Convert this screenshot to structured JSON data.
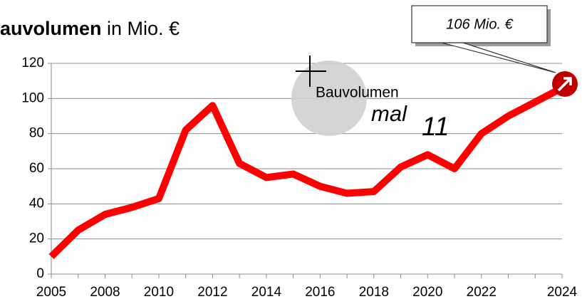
{
  "chart_data": {
    "type": "line",
    "title_bold": "auvolumen",
    "title_rest": " in Mio. €",
    "categories": [
      "2005",
      null,
      "2008",
      null,
      "2010",
      null,
      "2012",
      null,
      "2014",
      null,
      "2016",
      null,
      "2018",
      null,
      "2020",
      null,
      "2022",
      null,
      null,
      "2024"
    ],
    "series": [
      {
        "name": "Bauvolumen",
        "color": "#ff0000",
        "values": [
          10,
          25,
          34,
          38,
          43,
          82,
          96,
          63,
          55,
          57,
          50,
          46,
          47,
          61,
          68,
          60,
          80,
          90,
          98,
          106
        ]
      }
    ],
    "ylim": [
      0,
      120
    ],
    "yticks": [
      0,
      20,
      40,
      60,
      80,
      100,
      120
    ],
    "grid": true,
    "callout": "106 Mio. €",
    "annotations": {
      "label": "Bauvolumen",
      "factor_word": "mal",
      "factor": "11"
    }
  }
}
